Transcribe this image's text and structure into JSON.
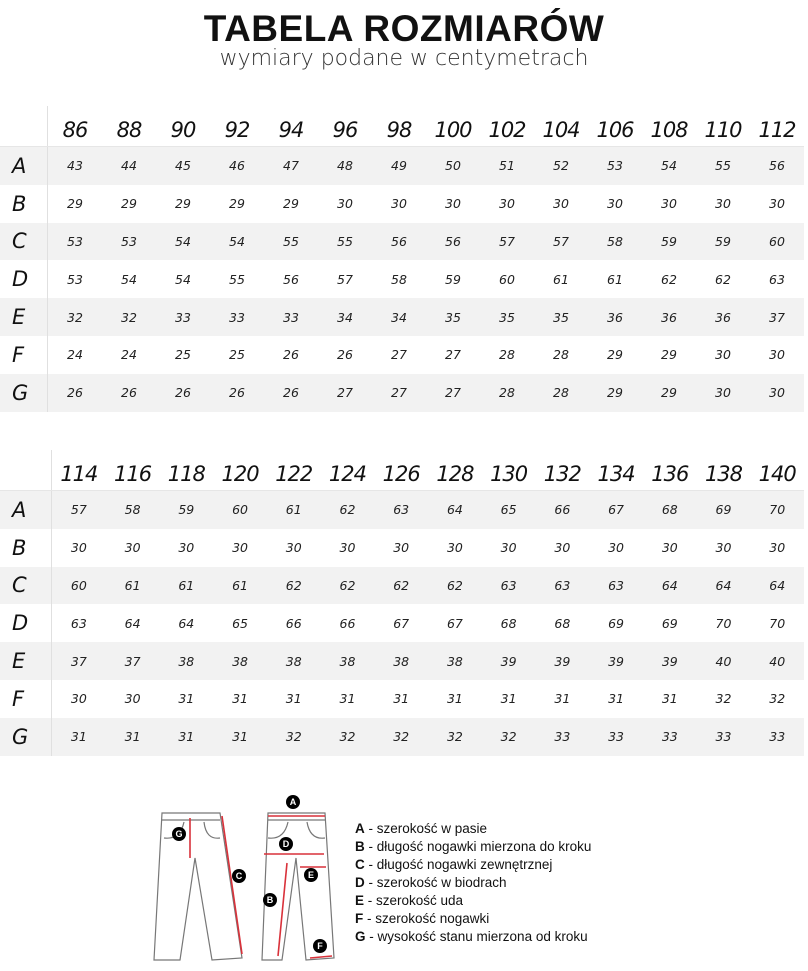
{
  "header": {
    "title": "TABELA ROZMIARÓW",
    "subtitle": "wymiary podane w centymetrach"
  },
  "tables": [
    {
      "sizes": [
        "86",
        "88",
        "90",
        "92",
        "94",
        "96",
        "98",
        "100",
        "102",
        "104",
        "106",
        "108",
        "110",
        "112"
      ],
      "rows": [
        {
          "label": "A",
          "values": [
            "43",
            "44",
            "45",
            "46",
            "47",
            "48",
            "49",
            "50",
            "51",
            "52",
            "53",
            "54",
            "55",
            "56"
          ]
        },
        {
          "label": "B",
          "values": [
            "29",
            "29",
            "29",
            "29",
            "29",
            "30",
            "30",
            "30",
            "30",
            "30",
            "30",
            "30",
            "30",
            "30"
          ]
        },
        {
          "label": "C",
          "values": [
            "53",
            "53",
            "54",
            "54",
            "55",
            "55",
            "56",
            "56",
            "57",
            "57",
            "58",
            "59",
            "59",
            "60"
          ]
        },
        {
          "label": "D",
          "values": [
            "53",
            "54",
            "54",
            "55",
            "56",
            "57",
            "58",
            "59",
            "60",
            "61",
            "61",
            "62",
            "62",
            "63"
          ]
        },
        {
          "label": "E",
          "values": [
            "32",
            "32",
            "33",
            "33",
            "33",
            "34",
            "34",
            "35",
            "35",
            "35",
            "36",
            "36",
            "36",
            "37"
          ]
        },
        {
          "label": "F",
          "values": [
            "24",
            "24",
            "25",
            "25",
            "26",
            "26",
            "27",
            "27",
            "28",
            "28",
            "29",
            "29",
            "30",
            "30"
          ]
        },
        {
          "label": "G",
          "values": [
            "26",
            "26",
            "26",
            "26",
            "26",
            "27",
            "27",
            "27",
            "28",
            "28",
            "29",
            "29",
            "30",
            "30"
          ]
        }
      ]
    },
    {
      "sizes": [
        "114",
        "116",
        "118",
        "120",
        "122",
        "124",
        "126",
        "128",
        "130",
        "132",
        "134",
        "136",
        "138",
        "140"
      ],
      "rows": [
        {
          "label": "A",
          "values": [
            "57",
            "58",
            "59",
            "60",
            "61",
            "62",
            "63",
            "64",
            "65",
            "66",
            "67",
            "68",
            "69",
            "70"
          ]
        },
        {
          "label": "B",
          "values": [
            "30",
            "30",
            "30",
            "30",
            "30",
            "30",
            "30",
            "30",
            "30",
            "30",
            "30",
            "30",
            "30",
            "30"
          ]
        },
        {
          "label": "C",
          "values": [
            "60",
            "61",
            "61",
            "61",
            "62",
            "62",
            "62",
            "62",
            "63",
            "63",
            "63",
            "64",
            "64",
            "64"
          ]
        },
        {
          "label": "D",
          "values": [
            "63",
            "64",
            "64",
            "65",
            "66",
            "66",
            "67",
            "67",
            "68",
            "68",
            "69",
            "69",
            "70",
            "70"
          ]
        },
        {
          "label": "E",
          "values": [
            "37",
            "37",
            "38",
            "38",
            "38",
            "38",
            "38",
            "38",
            "39",
            "39",
            "39",
            "39",
            "40",
            "40"
          ]
        },
        {
          "label": "F",
          "values": [
            "30",
            "30",
            "31",
            "31",
            "31",
            "31",
            "31",
            "31",
            "31",
            "31",
            "31",
            "31",
            "32",
            "32"
          ]
        },
        {
          "label": "G",
          "values": [
            "31",
            "31",
            "31",
            "31",
            "32",
            "32",
            "32",
            "32",
            "32",
            "33",
            "33",
            "33",
            "33",
            "33"
          ]
        }
      ]
    }
  ],
  "legend": [
    {
      "key": "A",
      "text": " - szerokość w pasie"
    },
    {
      "key": "B",
      "text": " - długość nogawki mierzona do kroku"
    },
    {
      "key": "C",
      "text": " - długość nogawki zewnętrznej"
    },
    {
      "key": "D",
      "text": " - szerokość w biodrach"
    },
    {
      "key": "E",
      "text": " - szerokość uda"
    },
    {
      "key": "F",
      "text": " - szerokość nogawki"
    },
    {
      "key": "G",
      "text": " - wysokość stanu mierzona od kroku"
    }
  ],
  "diagram": {
    "markers": [
      "A",
      "B",
      "C",
      "D",
      "E",
      "F",
      "G"
    ]
  },
  "colors": {
    "stripe": "#f2f2f2",
    "arrow": "#d9313a"
  }
}
